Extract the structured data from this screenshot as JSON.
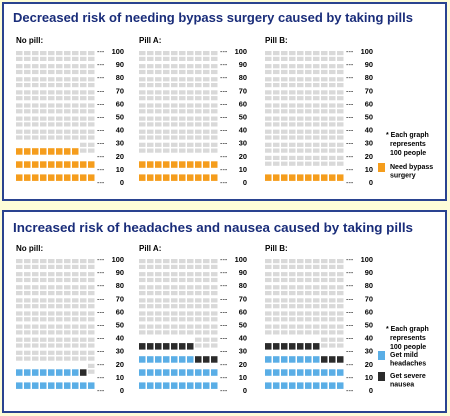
{
  "colors": {
    "background": "#fefdd8",
    "panel_border": "#2a4390",
    "panel_fill": "#ffffff",
    "title": "#1a2d7a",
    "empty_cell": "#d9d9d9",
    "orange": "#f59d1c",
    "blue": "#5aaee6",
    "black": "#2b2b2b"
  },
  "chart_data": [
    {
      "type": "waffle",
      "title": "Decreased risk of needing bypass surgery caused by taking pills",
      "grid": {
        "rows": 10,
        "cols": 10
      },
      "y_ticks": [
        "100",
        "90",
        "80",
        "70",
        "60",
        "50",
        "40",
        "30",
        "20",
        "10",
        "0"
      ],
      "groups": [
        {
          "label": "No pill:",
          "values": {
            "bypass": 28
          }
        },
        {
          "label": "Pill A:",
          "values": {
            "bypass": 20
          }
        },
        {
          "label": "Pill B:",
          "values": {
            "bypass": 10
          }
        }
      ],
      "series": [
        {
          "key": "bypass",
          "name": "Need bypass surgery",
          "color": "#f59d1c",
          "legend_lines": [
            "Need bypass",
            "surgery"
          ]
        }
      ],
      "note_lines": [
        "* Each graph",
        "represents",
        "100 people"
      ]
    },
    {
      "type": "waffle",
      "title": "Increased risk of headaches and nausea caused by taking pills",
      "grid": {
        "rows": 10,
        "cols": 10
      },
      "y_ticks": [
        "100",
        "90",
        "80",
        "70",
        "60",
        "50",
        "40",
        "30",
        "20",
        "10",
        "0"
      ],
      "groups": [
        {
          "label": "No pill:",
          "values": {
            "headache": 18,
            "nausea": 1
          }
        },
        {
          "label": "Pill A:",
          "values": {
            "headache": 27,
            "nausea": 10
          }
        },
        {
          "label": "Pill B:",
          "values": {
            "headache": 27,
            "nausea": 10
          }
        }
      ],
      "series": [
        {
          "key": "headache",
          "name": "Get mild headaches",
          "color": "#5aaee6",
          "legend_lines": [
            "Get mild",
            "headaches"
          ]
        },
        {
          "key": "nausea",
          "name": "Get severe nausea",
          "color": "#2b2b2b",
          "legend_lines": [
            "Get severe",
            "nausea"
          ]
        }
      ],
      "note_lines": [
        "* Each graph",
        "represents",
        "100 people"
      ]
    }
  ]
}
